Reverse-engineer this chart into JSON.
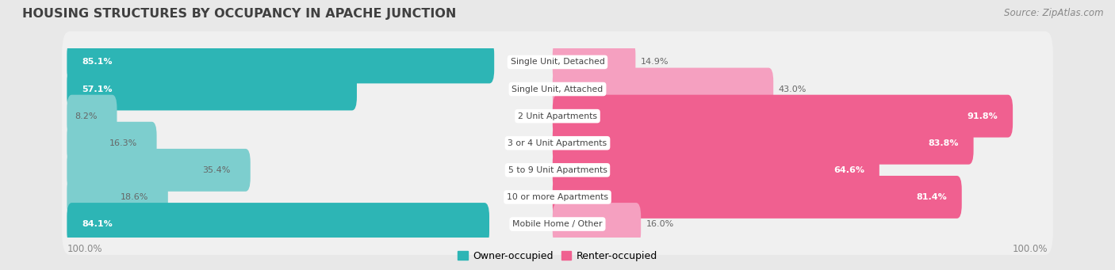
{
  "title": "HOUSING STRUCTURES BY OCCUPANCY IN APACHE JUNCTION",
  "source": "Source: ZipAtlas.com",
  "categories": [
    "Single Unit, Detached",
    "Single Unit, Attached",
    "2 Unit Apartments",
    "3 or 4 Unit Apartments",
    "5 to 9 Unit Apartments",
    "10 or more Apartments",
    "Mobile Home / Other"
  ],
  "owner_pct": [
    85.1,
    57.1,
    8.2,
    16.3,
    35.4,
    18.6,
    84.1
  ],
  "renter_pct": [
    14.9,
    43.0,
    91.8,
    83.8,
    64.6,
    81.4,
    16.0
  ],
  "owner_color_dark": "#2db5b5",
  "owner_color_light": "#7dcece",
  "renter_color_dark": "#f06090",
  "renter_color_light": "#f5a0c0",
  "bg_color": "#e8e8e8",
  "row_bg_color": "#f0f0f0",
  "title_color": "#404040",
  "source_color": "#888888",
  "bottom_label_color": "#888888",
  "cat_label_color": "#444444",
  "owner_label_white": [
    0,
    1,
    6
  ],
  "renter_label_white": [
    2,
    3,
    4,
    5
  ],
  "legend_owner_color": "#2db5b5",
  "legend_renter_color": "#f06090"
}
